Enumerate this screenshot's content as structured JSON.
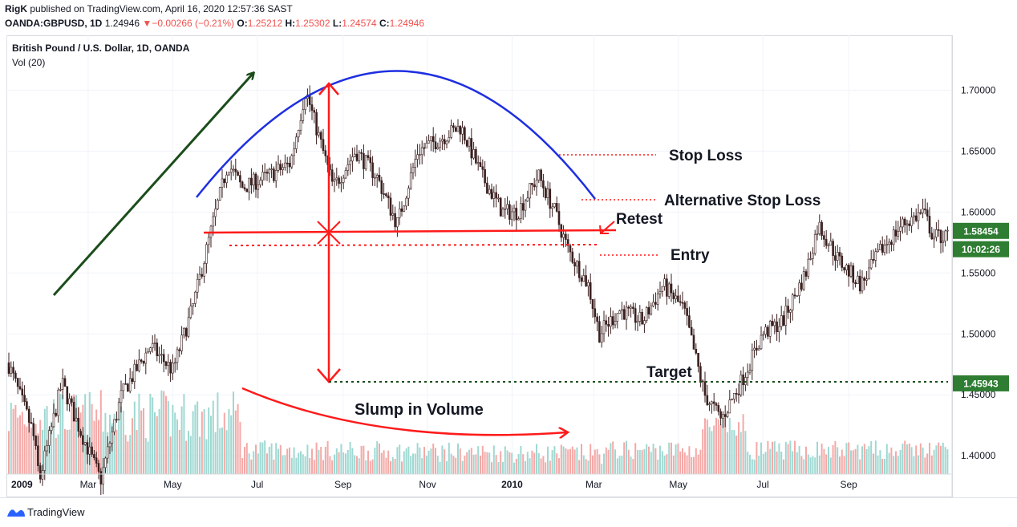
{
  "header": {
    "author": "RigK",
    "published_text": "published on TradingView.com, April 16, 2020 12:57:36 SAST",
    "symbol": "OANDA:GBPUSD, 1D",
    "last": "1.24946",
    "change": "−0.00266 (−0.21%)",
    "o_label": "O:",
    "o": "1.25212",
    "h_label": "H:",
    "h": "1.25302",
    "l_label": "L:",
    "l": "1.24574",
    "c_label": "C:",
    "c": "1.24946"
  },
  "pane": {
    "title": "British Pound / U.S. Dollar, 1D, OANDA",
    "volume_label": "Vol (20)"
  },
  "footer": {
    "brand": "TradingView"
  },
  "colors": {
    "up": "#26a69a",
    "down": "#ef5350",
    "candle_body": "#3a1f1f",
    "arc": "#1e2fe0",
    "trend_arrow": "#1b4d1b",
    "annotation": "#ff1a1a",
    "target_line": "#1b4d1b",
    "price_badge": "#2e7d32"
  },
  "chart_data": {
    "type": "candlestick",
    "title": "British Pound / U.S. Dollar, 1D, OANDA",
    "x_ticks": [
      "2009",
      "Mar",
      "May",
      "Jul",
      "Sep",
      "Nov",
      "2010",
      "Mar",
      "May",
      "Jul",
      "Sep"
    ],
    "y_ticks": [
      "1.40000",
      "1.45000",
      "1.50000",
      "1.55000",
      "1.60000",
      "1.65000",
      "1.70000"
    ],
    "ylim": [
      1.385,
      1.745
    ],
    "price_path": [
      {
        "x": "2009-01-01",
        "y": 1.48
      },
      {
        "x": "2009-01-20",
        "y": 1.42
      },
      {
        "x": "2009-01-25",
        "y": 1.38
      },
      {
        "x": "2009-02-10",
        "y": 1.46
      },
      {
        "x": "2009-02-20",
        "y": 1.43
      },
      {
        "x": "2009-03-10",
        "y": 1.38
      },
      {
        "x": "2009-03-25",
        "y": 1.45
      },
      {
        "x": "2009-04-15",
        "y": 1.49
      },
      {
        "x": "2009-05-01",
        "y": 1.47
      },
      {
        "x": "2009-05-15",
        "y": 1.52
      },
      {
        "x": "2009-06-01",
        "y": 1.6
      },
      {
        "x": "2009-06-10",
        "y": 1.64
      },
      {
        "x": "2009-06-20",
        "y": 1.62
      },
      {
        "x": "2009-07-10",
        "y": 1.63
      },
      {
        "x": "2009-07-25",
        "y": 1.64
      },
      {
        "x": "2009-08-05",
        "y": 1.7
      },
      {
        "x": "2009-08-15",
        "y": 1.66
      },
      {
        "x": "2009-08-25",
        "y": 1.62
      },
      {
        "x": "2009-09-10",
        "y": 1.65
      },
      {
        "x": "2009-09-25",
        "y": 1.63
      },
      {
        "x": "2009-10-10",
        "y": 1.59
      },
      {
        "x": "2009-10-25",
        "y": 1.65
      },
      {
        "x": "2009-11-10",
        "y": 1.66
      },
      {
        "x": "2009-11-25",
        "y": 1.67
      },
      {
        "x": "2009-12-10",
        "y": 1.63
      },
      {
        "x": "2009-12-25",
        "y": 1.6
      },
      {
        "x": "2010-01-05",
        "y": 1.6
      },
      {
        "x": "2010-01-20",
        "y": 1.63
      },
      {
        "x": "2010-02-01",
        "y": 1.6
      },
      {
        "x": "2010-02-10",
        "y": 1.57
      },
      {
        "x": "2010-02-25",
        "y": 1.54
      },
      {
        "x": "2010-03-05",
        "y": 1.5
      },
      {
        "x": "2010-03-20",
        "y": 1.52
      },
      {
        "x": "2010-04-05",
        "y": 1.51
      },
      {
        "x": "2010-04-20",
        "y": 1.54
      },
      {
        "x": "2010-05-05",
        "y": 1.52
      },
      {
        "x": "2010-05-20",
        "y": 1.45
      },
      {
        "x": "2010-06-01",
        "y": 1.43
      },
      {
        "x": "2010-06-15",
        "y": 1.46
      },
      {
        "x": "2010-07-01",
        "y": 1.5
      },
      {
        "x": "2010-07-15",
        "y": 1.51
      },
      {
        "x": "2010-08-01",
        "y": 1.55
      },
      {
        "x": "2010-08-10",
        "y": 1.59
      },
      {
        "x": "2010-08-25",
        "y": 1.56
      },
      {
        "x": "2010-09-10",
        "y": 1.54
      },
      {
        "x": "2010-09-25",
        "y": 1.57
      },
      {
        "x": "2010-10-10",
        "y": 1.59
      },
      {
        "x": "2010-10-25",
        "y": 1.6
      },
      {
        "x": "2010-11-01",
        "y": 1.58
      }
    ],
    "price_badges": [
      {
        "label": "1.58454",
        "y": 1.58454
      },
      {
        "label": "10:02:26",
        "y": 1.5695
      },
      {
        "label": "1.45943",
        "y": 1.45943
      }
    ],
    "annotations": {
      "stop_loss": {
        "label": "Stop Loss",
        "y": 1.6435
      },
      "alt_stop_loss": {
        "label": "Alternative Stop Loss",
        "y": 1.6075
      },
      "retest": {
        "label": "Retest"
      },
      "neckline": {
        "y": 1.5835
      },
      "entry": {
        "label": "Entry",
        "y": 1.565
      },
      "pattern_top": {
        "y": 1.7025
      },
      "target": {
        "label": "Target",
        "y": 1.45943
      },
      "volume": {
        "label": "Slump in Volume"
      }
    }
  }
}
